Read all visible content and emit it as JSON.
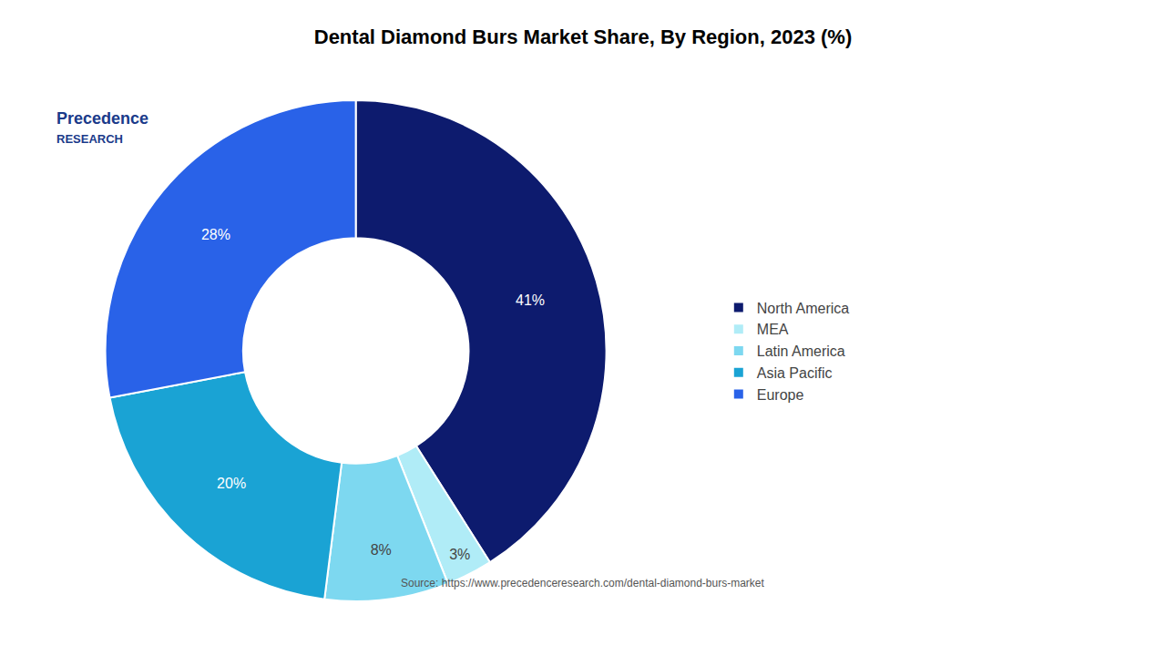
{
  "chart_data": {
    "type": "pie",
    "title": "Dental Diamond Burs Market Share, By Region, 2023 (%)",
    "categories": [
      "North America",
      "MEA",
      "Latin America",
      "Asia Pacific",
      "Europe"
    ],
    "values": [
      41,
      3,
      8,
      20,
      28
    ],
    "value_labels": [
      "41%",
      "3%",
      "8%",
      "20%",
      "28%"
    ],
    "colors": [
      "#0d1b6e",
      "#b0ecf7",
      "#7dd8f0",
      "#1aa3d4",
      "#2962e8"
    ],
    "data_labels": true,
    "legend": "right",
    "annotations": [
      {
        "text": "Precedence",
        "color": "#1a3a8a"
      },
      {
        "text": "RESEARCH",
        "color": "#1a3a8a"
      },
      {
        "text": "Source: https://www.precedenceresearch.com/dental-diamond-burs-market",
        "color": "#555555"
      }
    ]
  }
}
